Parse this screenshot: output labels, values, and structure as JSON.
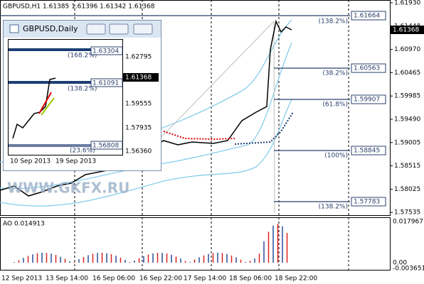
{
  "main": {
    "header": "GBPUSD,H1  1.61385 1.61396 1.61342 1.61368",
    "price_axis": [
      "1.61930",
      "1.61448",
      "1.60970",
      "1.60465",
      "1.59985",
      "1.59490",
      "1.59005",
      "1.58515",
      "1.58025",
      "1.57535"
    ],
    "current_price": "1.61368",
    "fib_levels": [
      {
        "pct": "(138.2%)",
        "price": "1.61664"
      },
      {
        "pct": "(38.2%)",
        "price": "1.60563"
      },
      {
        "pct": "(61.8%)",
        "price": "1.59907"
      },
      {
        "pct": "(100%)",
        "price": "1.58845"
      },
      {
        "pct": "(138.2%)",
        "price": "1.57783"
      }
    ],
    "time_axis": [
      "12 Sep 2013",
      "13 Sep 14:00",
      "16 Sep 06:00",
      "16 Sep 22:00",
      "17 Sep 14:00",
      "18 Sep 06:00",
      "18 Sep 22:00"
    ],
    "watermark": "WWW.GKFX.RU"
  },
  "oscillator": {
    "label": "AO 0.014913",
    "axis": [
      "0.017967",
      "0.00",
      "-0.003651"
    ]
  },
  "daily_window": {
    "title": "GBPUSD,Daily",
    "price_axis": [
      "1.62795",
      "1.61368",
      "1.59555",
      "1.57935",
      "1.56360"
    ],
    "fib_levels": [
      {
        "pct": "(168.2%)",
        "price": "1.63304"
      },
      {
        "pct": "(138.2%)",
        "price": "1.61091"
      },
      {
        "pct": "(23.6%)",
        "price": "1.56808"
      }
    ],
    "dates": [
      "10 Sep 2013",
      "19 Sep 2013"
    ]
  }
}
